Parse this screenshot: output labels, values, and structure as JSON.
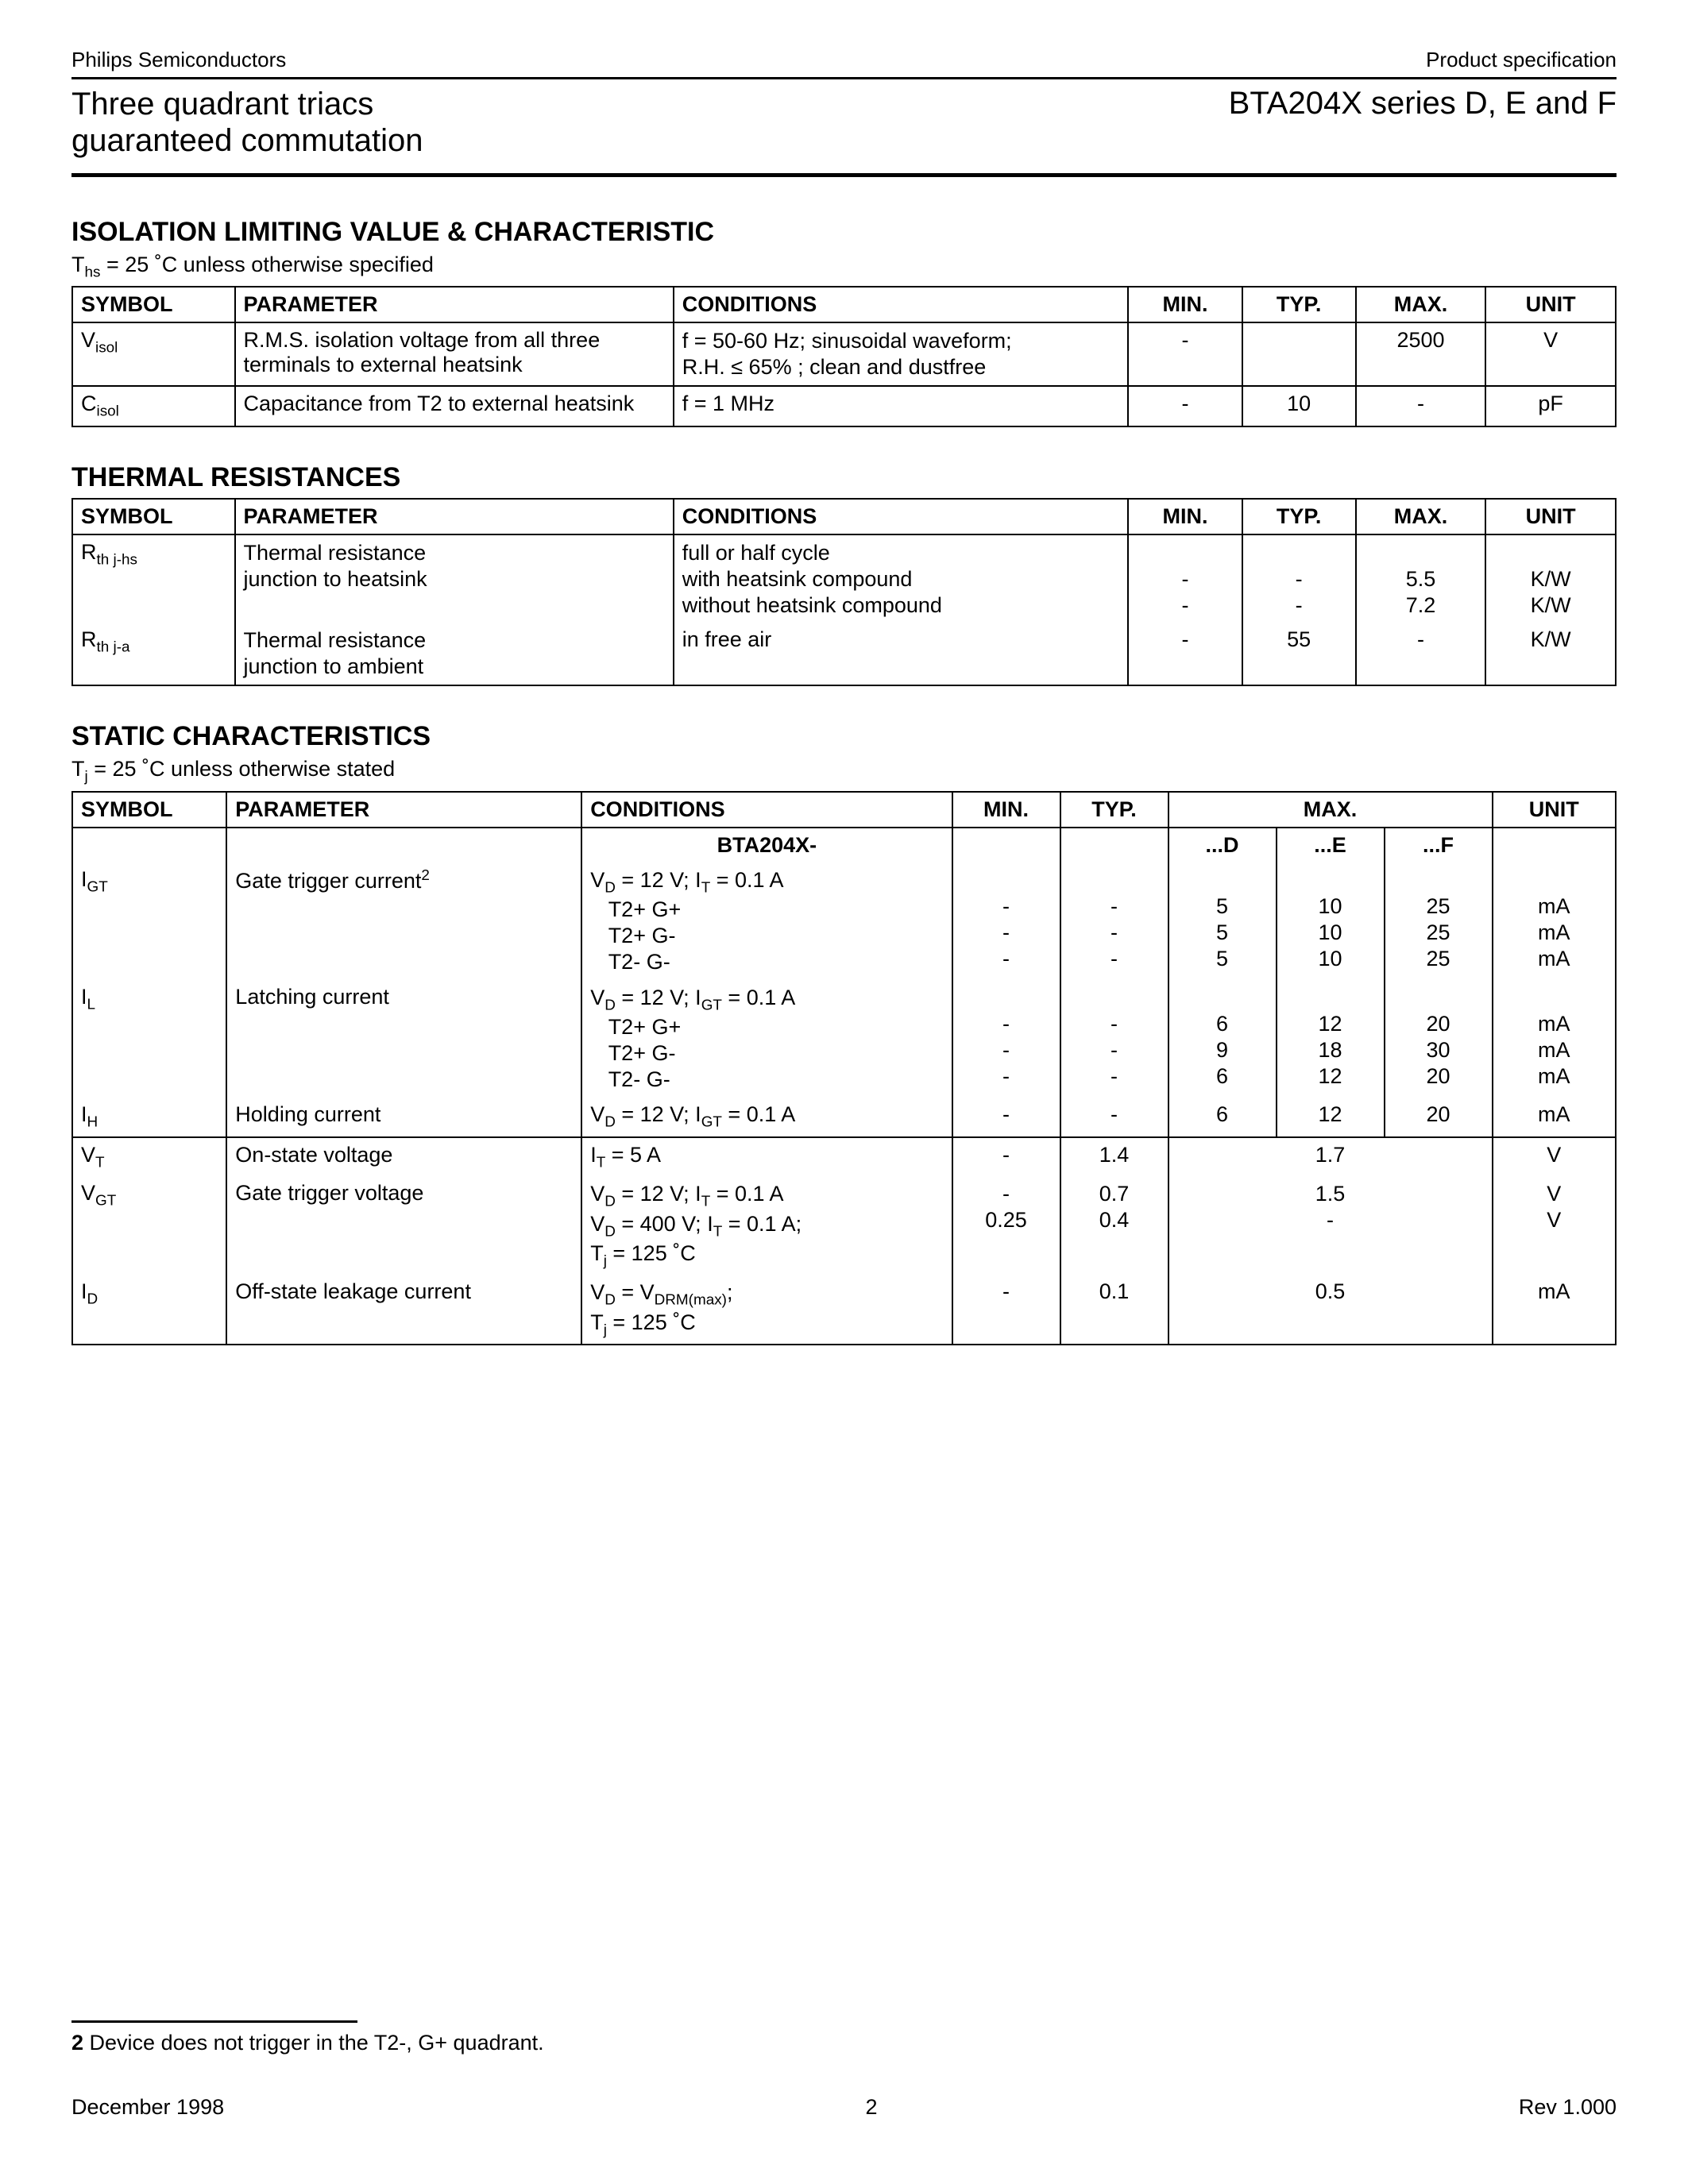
{
  "header": {
    "company": "Philips Semiconductors",
    "doctype": "Product specification",
    "product_left_l1": "Three quadrant triacs",
    "product_left_l2": "guaranteed commutation",
    "product_right": "BTA204X series D, E and F"
  },
  "isolation": {
    "title": "ISOLATION LIMITING VALUE & CHARACTERISTIC",
    "subtitle": "T_hs = 25 ˚C unless otherwise specified",
    "columns": {
      "sym": "SYMBOL",
      "param": "PARAMETER",
      "cond": "CONDITIONS",
      "min": "MIN.",
      "typ": "TYP.",
      "max": "MAX.",
      "unit": "UNIT"
    },
    "rows": [
      {
        "symbol": "V_isol",
        "parameter": "R.M.S. isolation voltage from all three terminals to external heatsink",
        "conditions": "f = 50-60 Hz; sinusoidal waveform;\nR.H. ≤ 65% ; clean and dustfree",
        "min": "-",
        "typ": "",
        "max": "2500",
        "unit": "V"
      },
      {
        "symbol": "C_isol",
        "parameter": "Capacitance from T2 to external heatsink",
        "conditions": "f = 1 MHz",
        "min": "-",
        "typ": "10",
        "max": "-",
        "unit": "pF"
      }
    ]
  },
  "thermal": {
    "title": "THERMAL RESISTANCES",
    "columns": {
      "sym": "SYMBOL",
      "param": "PARAMETER",
      "cond": "CONDITIONS",
      "min": "MIN.",
      "typ": "TYP.",
      "max": "MAX.",
      "unit": "UNIT"
    },
    "r1": {
      "symbol": "R_th j-hs",
      "parameter": "Thermal resistance junction to heatsink",
      "cond_l1": "full or half cycle",
      "cond_l2": "with heatsink compound",
      "cond_l3": "without heatsink compound",
      "min": "-\n-",
      "typ": "-\n-",
      "max": "5.5\n7.2",
      "unit": "K/W\nK/W"
    },
    "r2": {
      "symbol": "R_th j-a",
      "parameter": "Thermal resistance junction to ambient",
      "cond": "in free air",
      "min": "-",
      "typ": "55",
      "max": "-",
      "unit": "K/W"
    }
  },
  "static": {
    "title": "STATIC CHARACTERISTICS",
    "subtitle": "T_j = 25 ˚C unless otherwise stated",
    "columns": {
      "sym": "SYMBOL",
      "param": "PARAMETER",
      "cond": "CONDITIONS",
      "min": "MIN.",
      "typ": "TYP.",
      "max": "MAX.",
      "unit": "UNIT"
    },
    "model_header": "BTA204X-",
    "subcols": {
      "d": "...D",
      "e": "...E",
      "f": "...F"
    },
    "igt": {
      "symbol": "I_GT",
      "parameter": "Gate trigger current²",
      "cond_l1": "V_D = 12 V; I_T = 0.1 A",
      "cond_l2": "T2+ G+",
      "cond_l3": "T2+ G-",
      "cond_l4": "T2- G-",
      "min": "-\n-\n-",
      "typ": "-\n-\n-",
      "d": "5\n5\n5",
      "e": "10\n10\n10",
      "f": "25\n25\n25",
      "unit": "mA\nmA\nmA"
    },
    "il": {
      "symbol": "I_L",
      "parameter": "Latching current",
      "cond_l1": "V_D = 12 V; I_GT = 0.1 A",
      "cond_l2": "T2+ G+",
      "cond_l3": "T2+ G-",
      "cond_l4": "T2- G-",
      "min": "-\n-\n-",
      "typ": "-\n-\n-",
      "d": "6\n9\n6",
      "e": "12\n18\n12",
      "f": "20\n30\n20",
      "unit": "mA\nmA\nmA"
    },
    "ih": {
      "symbol": "I_H",
      "parameter": "Holding current",
      "cond": "V_D = 12 V; I_GT = 0.1 A",
      "min": "-",
      "typ": "-",
      "d": "6",
      "e": "12",
      "f": "20",
      "unit": "mA"
    },
    "vt": {
      "symbol": "V_T",
      "parameter": "On-state voltage",
      "cond": "I_T = 5 A",
      "min": "-",
      "typ": "1.4",
      "max": "1.7",
      "unit": "V"
    },
    "vgt": {
      "symbol": "V_GT",
      "parameter": "Gate trigger voltage",
      "cond_l1": "V_D = 12 V; I_T = 0.1 A",
      "cond_l2": "V_D = 400 V; I_T = 0.1 A;\nT_j = 125 ˚C",
      "min": "-\n0.25",
      "typ": "0.7\n0.4",
      "max": "1.5\n-",
      "unit": "V\nV"
    },
    "id": {
      "symbol": "I_D",
      "parameter": "Off-state leakage current",
      "cond": "V_D = V_DRM(max);\nT_j = 125 ˚C",
      "min": "-",
      "typ": "0.1",
      "max": "0.5",
      "unit": "mA"
    }
  },
  "footnote": {
    "num": "2",
    "text": "Device does not trigger in the T2-, G+ quadrant."
  },
  "footer": {
    "date": "December 1998",
    "page": "2",
    "rev": "Rev 1.000"
  }
}
